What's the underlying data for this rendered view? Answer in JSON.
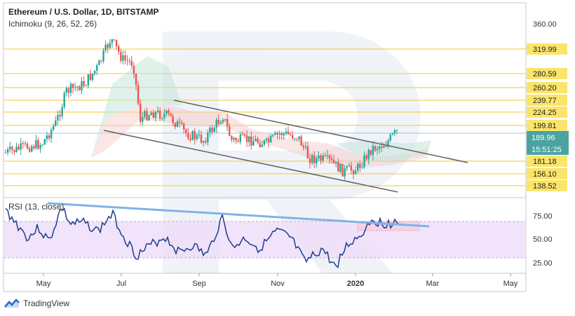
{
  "header": {
    "title": "Ethereum / U.S. Dollar, 1D, BITSTAMP",
    "indicator": "Ichimoku (9, 26, 52, 26)"
  },
  "rsi": {
    "label": "RSI (13, close)",
    "ticks": [
      "75.00",
      "50.00",
      "25.00"
    ]
  },
  "footer": {
    "brand": "TradingView"
  },
  "colors": {
    "up": "#26a69a",
    "down": "#ef5350",
    "level": "#f0c419",
    "level_fill": "#fbe46b",
    "current": "#9ec5e8",
    "rsi_line": "#1b3d8f",
    "rsi_band": "#e9d6f5",
    "trendline": "#7fb2e8",
    "channel": "#606060"
  },
  "chart_data": [
    {
      "type": "candlestick",
      "title": "Ethereum / U.S. Dollar, 1D, BITSTAMP",
      "x_ticks": [
        "May",
        "Jul",
        "Sep",
        "Nov",
        "2020",
        "Mar",
        "May"
      ],
      "y_ticks": [
        "360.00",
        "319.99",
        "280.59",
        "260.20",
        "239.77",
        "224.25",
        "199.81",
        "189.96",
        "181.18",
        "156.10",
        "138.52"
      ],
      "price_levels": [
        319.99,
        280.59,
        260.2,
        239.77,
        224.25,
        199.81,
        181.18,
        156.1,
        138.52
      ],
      "current_price": "189.96",
      "countdown": "15:51:25",
      "indicator": "Ichimoku (9, 26, 52, 26)",
      "trendlines": "descending channel"
    },
    {
      "type": "line",
      "title": "RSI (13, close)",
      "y_ticks": [
        "75.00",
        "50.00",
        "25.00"
      ],
      "band": [
        30,
        70
      ],
      "trendline": "descending"
    }
  ]
}
